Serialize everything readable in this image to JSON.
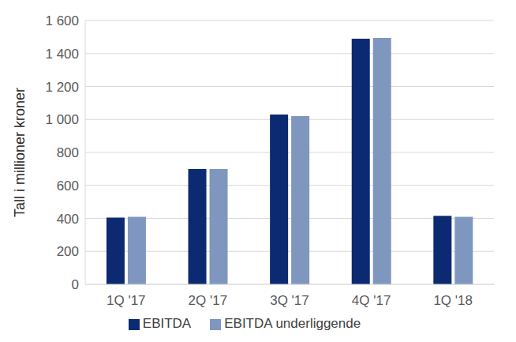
{
  "chart_data": {
    "type": "bar",
    "y_label": "Tall i millioner kroner",
    "categories": [
      "1Q '17",
      "2Q '17",
      "3Q '17",
      "4Q '17",
      "1Q '18"
    ],
    "series": [
      {
        "name": "EBITDA",
        "color": "#0b2a72",
        "values": [
          405,
          700,
          1030,
          1490,
          415
        ]
      },
      {
        "name": "EBITDA underliggende",
        "color": "#7f97bf",
        "values": [
          410,
          700,
          1020,
          1495,
          410
        ]
      }
    ],
    "ylim": [
      0,
      1600
    ],
    "yticks": [
      0,
      200,
      400,
      600,
      800,
      {
        "value": 1000,
        "label": "1 000"
      },
      {
        "value": 1200,
        "label": "1 200"
      },
      {
        "value": 1400,
        "label": "1 400"
      },
      {
        "value": 1600,
        "label": "1 600"
      }
    ],
    "grid": true,
    "legend": "bottom"
  }
}
